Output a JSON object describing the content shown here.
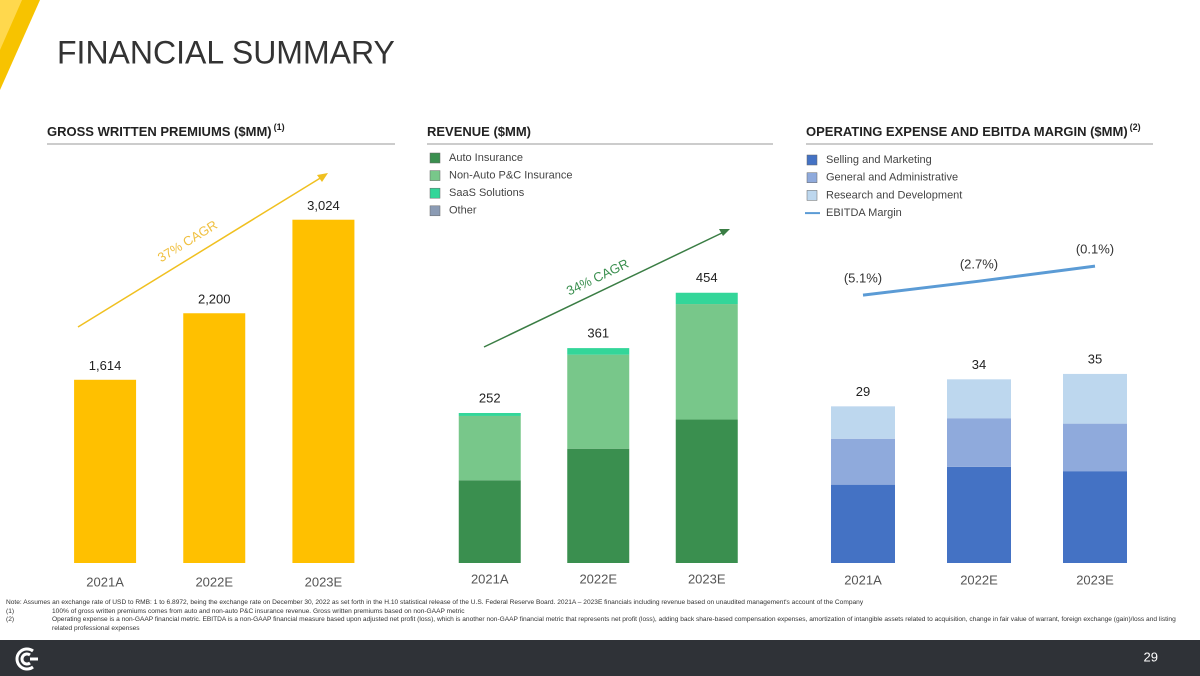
{
  "title": "FINANCIAL SUMMARY",
  "chart_data": [
    {
      "type": "bar",
      "title": "GROSS WRITTEN PREMIUMS ($MM)",
      "title_note": "(1)",
      "categories": [
        "2021A",
        "2022E",
        "2023E"
      ],
      "values": [
        1614,
        2200,
        3024
      ],
      "value_labels": [
        "1,614",
        "2,200",
        "3,024"
      ],
      "color": "#ffc000",
      "ylim": [
        0,
        3550
      ],
      "annotation": "37% CAGR"
    },
    {
      "type": "stacked_bar",
      "title": "REVENUE ($MM)",
      "categories": [
        "2021A",
        "2022E",
        "2023E"
      ],
      "series": [
        {
          "name": "Auto Insurance",
          "color": "#3a8f4f",
          "values": [
            139,
            192,
            241
          ]
        },
        {
          "name": "Non-Auto P&C Insurance",
          "color": "#78c78a",
          "values": [
            108,
            158,
            194
          ]
        },
        {
          "name": "SaaS Solutions",
          "color": "#33d699",
          "values": [
            5,
            11,
            19
          ]
        },
        {
          "name": "Other",
          "color": "#8b9bb4",
          "values": [
            0,
            0,
            0
          ]
        }
      ],
      "totals": [
        252,
        361,
        454
      ],
      "ylim": [
        0,
        677
      ],
      "annotation": "34% CAGR"
    },
    {
      "type": "stacked_bar",
      "title": "OPERATING EXPENSE AND EBITDA MARGIN ($MM)",
      "title_note": "(2)",
      "categories": [
        "2021A",
        "2022E",
        "2023E"
      ],
      "series": [
        {
          "name": "Selling and Marketing",
          "color": "#4472c4",
          "values": [
            14.5,
            17.8,
            17
          ]
        },
        {
          "name": "General and Administrative",
          "color": "#8faadc",
          "values": [
            8.5,
            9,
            8.8
          ]
        },
        {
          "name": "Research and Development",
          "color": "#bdd7ee",
          "values": [
            6,
            7.2,
            9.2
          ]
        },
        {
          "name": "EBITDA Margin",
          "type": "line",
          "axis": "y2",
          "color": "#5b9bd5",
          "values": [
            -5.1,
            -2.7,
            -0.1
          ],
          "value_labels": [
            "(5.1%)",
            "(2.7%)",
            "(0.1%)"
          ]
        }
      ],
      "totals": [
        29,
        34,
        35
      ],
      "ylim": [
        0,
        74.6
      ],
      "y2lim": [
        -51.3,
        18.2
      ]
    }
  ],
  "notes": {
    "note": "Note: Assumes an exchange rate of USD to RMB: 1 to 6.8972, being the exchange rate on December 30, 2022 as set forth in the H.10 statistical release of the U.S. Federal Reserve Board. 2021A – 2023E financials including revenue based on unaudited management's account  of the Company",
    "footnotes": [
      {
        "marker": "(1)",
        "text": "100% of gross written premiums comes from auto and non-auto P&C insurance revenue. Gross written premiums based on non-GAAP metric"
      },
      {
        "marker": "(2)",
        "text": "Operating expense is a non-GAAP financial metric. EBITDA is a non-GAAP financial measure based upon adjusted net profit (loss), which is another non-GAAP financial metric that represents net profit (loss), adding back share-based compensation expenses, amortization of intangible assets related to acquisition, change in fair value of warrant, foreign exchange (gain)/loss and listing related professional expenses"
      }
    ]
  },
  "page_number": "29"
}
